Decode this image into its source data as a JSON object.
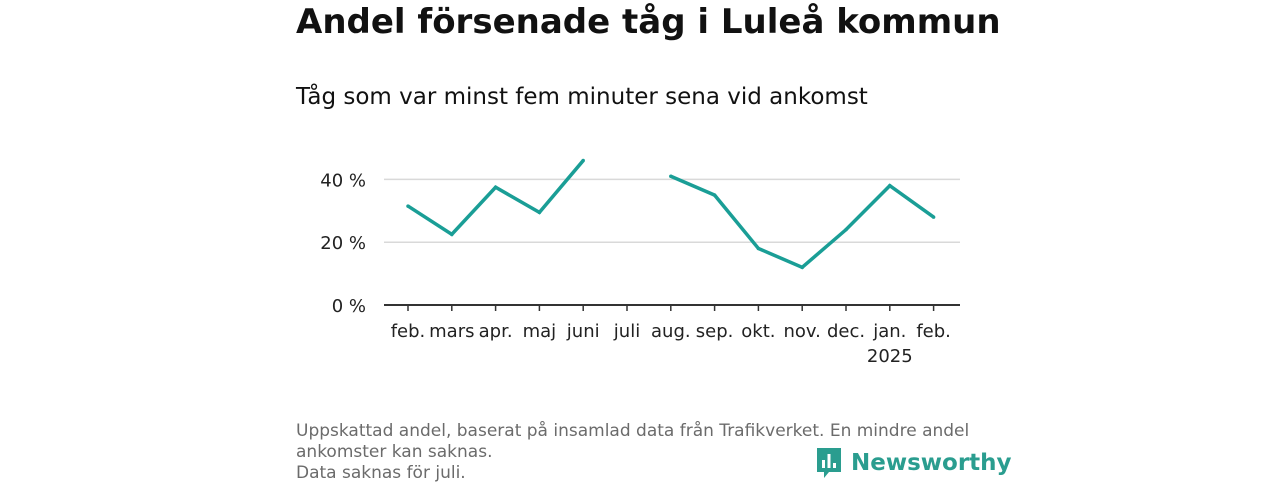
{
  "title": "Andel försenade tåg i Luleå kommun",
  "subtitle": "Tåg som var minst fem minuter sena vid ankomst",
  "footnote": [
    "Uppskattad andel, baserat på insamlad data från Trafikverket. En mindre andel",
    "ankomster kan saknas.",
    "Data saknas för juli."
  ],
  "brand": {
    "name": "Newsworthy",
    "color": "#2a9d8f"
  },
  "chart_data": {
    "type": "line",
    "categories": [
      "feb.",
      "mars",
      "apr.",
      "maj",
      "juni",
      "juli",
      "aug.",
      "sep.",
      "okt.",
      "nov.",
      "dec.",
      "jan.",
      "feb."
    ],
    "category_sublabels": [
      "",
      "",
      "",
      "",
      "",
      "",
      "",
      "",
      "",
      "",
      "",
      "2025",
      ""
    ],
    "series": [
      {
        "values": [
          31.5,
          22.5,
          37.5,
          29.5,
          46,
          null,
          41,
          35,
          18,
          12,
          24,
          38,
          28
        ],
        "color": "#1a9e96"
      }
    ],
    "y_ticks": [
      0,
      20,
      40
    ],
    "y_tick_labels": [
      "0 %",
      "20 %",
      "40 %"
    ],
    "ylim": [
      0,
      50
    ],
    "grid": true
  }
}
